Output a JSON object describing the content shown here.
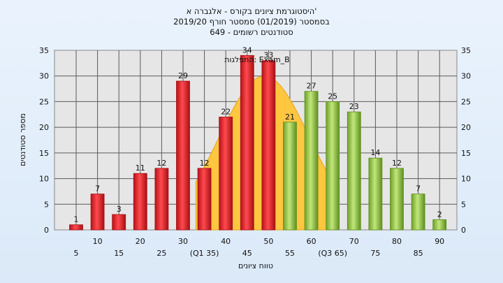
{
  "chart_data": {
    "type": "bar",
    "title_lines": [
      "היסטוגרמת ציונים בקורס - אלגברה א'",
      "בסמסטר  (01/2019)  סמסטר חורף 2019/20",
      "סטודנטים רשומים - 649"
    ],
    "xlabel": "טווח ציונים",
    "ylabel": "מספר סטודנטים",
    "ylim": [
      0,
      35
    ],
    "yticks": [
      0,
      5,
      10,
      15,
      20,
      25,
      30,
      35
    ],
    "grid": true,
    "categories": [
      "5",
      "10",
      "15",
      "20",
      "25",
      "30",
      "35",
      "40",
      "45",
      "50",
      "55",
      "60",
      "65",
      "70",
      "75",
      "80",
      "85",
      "90"
    ],
    "tick_labels": [
      "5",
      "10",
      "15",
      "20",
      "25",
      "30",
      "(Q1 35)",
      "40",
      "45",
      "50",
      "55",
      "60",
      "(Q3 65)",
      "70",
      "75",
      "80",
      "85",
      "90"
    ],
    "values": [
      1,
      7,
      3,
      11,
      12,
      29,
      12,
      22,
      34,
      33,
      21,
      27,
      25,
      23,
      14,
      12,
      7,
      2
    ],
    "bar_colors": [
      "red",
      "red",
      "red",
      "red",
      "red",
      "red",
      "red",
      "red",
      "red",
      "red",
      "green",
      "green",
      "green",
      "green",
      "green",
      "green",
      "green",
      "green"
    ],
    "colors": {
      "red": "#e8262b",
      "red_dark": "#a80f14",
      "green": "#9fce4f",
      "green_dark": "#5e8f1f",
      "curve": "#ffc640",
      "plot_bg": "#e6e6e6",
      "grid": "#555555"
    },
    "annotation": "התפלגות: Exam_B"
  }
}
